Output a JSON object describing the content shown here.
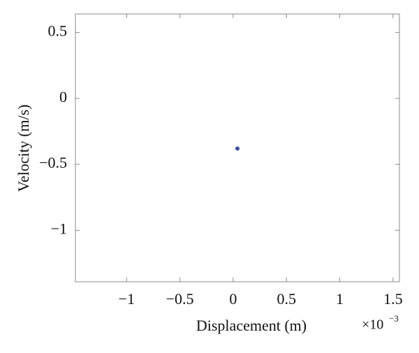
{
  "chart_data": {
    "type": "scatter",
    "x_label": "Displacement (m)",
    "y_label": "Velocity (m/s)",
    "x_multiplier": {
      "base": "×10",
      "exponent": "−3"
    },
    "series": [
      {
        "color": "#3d4f9f",
        "x": [
          0.04
        ],
        "values": [
          -0.38
        ]
      }
    ],
    "xlim": [
      -1.48,
      1.56
    ],
    "xticks": [
      {
        "value": -1,
        "label": "−1"
      },
      {
        "value": -0.5,
        "label": "−0.5"
      },
      0,
      0.5,
      1,
      1.5
    ],
    "ylim": [
      -1.39,
      0.64
    ],
    "yticks": [
      {
        "value": -1,
        "label": "−1"
      },
      {
        "value": -0.5,
        "label": "−0.5"
      },
      0,
      0.5
    ]
  }
}
